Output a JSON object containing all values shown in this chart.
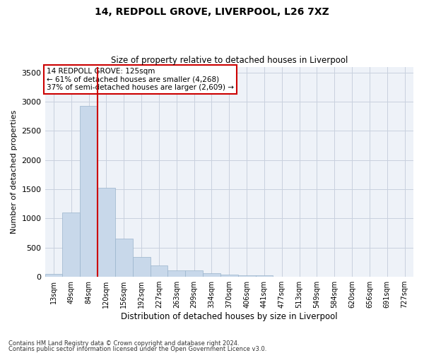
{
  "title_line1": "14, REDPOLL GROVE, LIVERPOOL, L26 7XZ",
  "title_line2": "Size of property relative to detached houses in Liverpool",
  "xlabel": "Distribution of detached houses by size in Liverpool",
  "ylabel": "Number of detached properties",
  "footnote1": "Contains HM Land Registry data © Crown copyright and database right 2024.",
  "footnote2": "Contains public sector information licensed under the Open Government Licence v3.0.",
  "annotation_line1": "14 REDPOLL GROVE: 125sqm",
  "annotation_line2": "← 61% of detached houses are smaller (4,268)",
  "annotation_line3": "37% of semi-detached houses are larger (2,609) →",
  "bar_color": "#c8d8ea",
  "bar_edge_color": "#9ab4cc",
  "redline_color": "#cc0000",
  "grid_color": "#c8d0de",
  "background_color": "#eef2f8",
  "categories": [
    "13sqm",
    "49sqm",
    "84sqm",
    "120sqm",
    "156sqm",
    "192sqm",
    "227sqm",
    "263sqm",
    "299sqm",
    "334sqm",
    "370sqm",
    "406sqm",
    "441sqm",
    "477sqm",
    "513sqm",
    "549sqm",
    "584sqm",
    "620sqm",
    "656sqm",
    "691sqm",
    "727sqm"
  ],
  "values": [
    50,
    1100,
    2930,
    1520,
    650,
    340,
    200,
    110,
    110,
    65,
    40,
    30,
    20,
    0,
    0,
    0,
    0,
    0,
    0,
    0,
    0
  ],
  "ylim": [
    0,
    3600
  ],
  "yticks": [
    0,
    500,
    1000,
    1500,
    2000,
    2500,
    3000,
    3500
  ],
  "redline_x": 2.5
}
